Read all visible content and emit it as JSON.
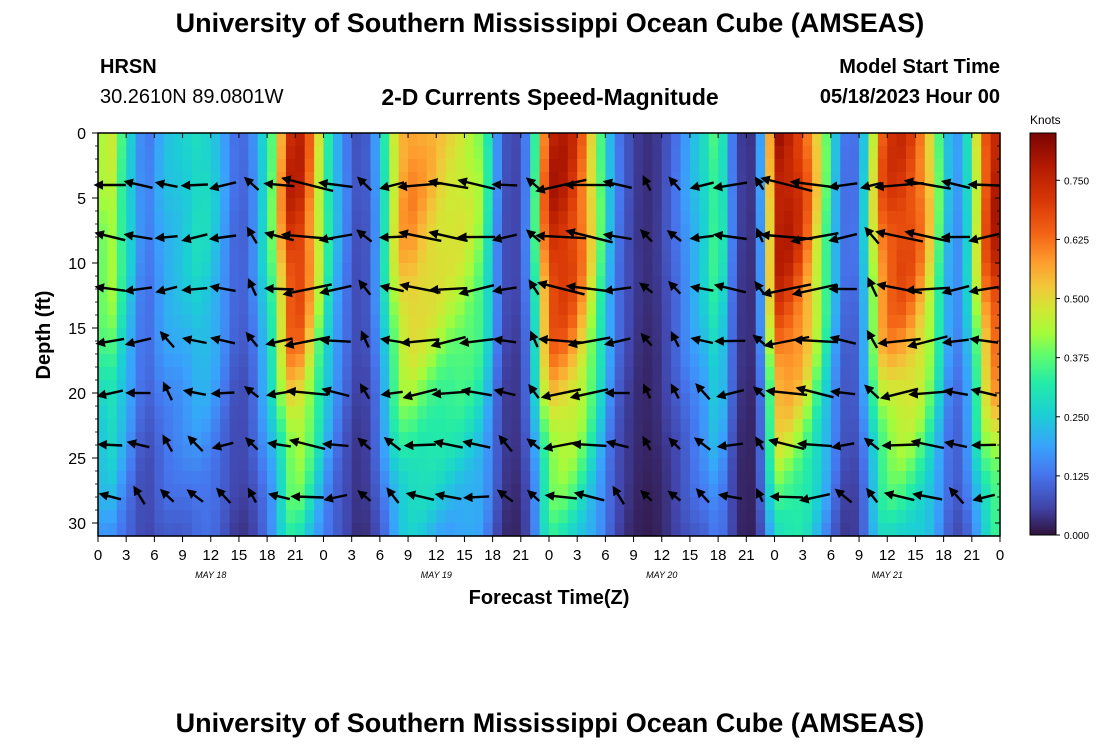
{
  "header": {
    "title": "University of Southern Mississippi Ocean Cube (AMSEAS)",
    "station": "HRSN",
    "coords": "30.2610N  89.0801W",
    "subtitle": "2-D Currents Speed-Magnitude",
    "model_start_label": "Model Start Time",
    "model_start_value": "05/18/2023 Hour 00",
    "footer_title": "University of Southern Mississippi Ocean Cube (AMSEAS)"
  },
  "colorbar": {
    "units": "Knots",
    "ticks": [
      "0.750",
      "0.625",
      "0.500",
      "0.375",
      "0.250",
      "0.125",
      "0.000"
    ],
    "min": 0,
    "max": 0.85
  },
  "chart_data": {
    "type": "heatmap",
    "title": "2-D Currents Speed-Magnitude",
    "xlabel": "Forecast Time(Z)",
    "ylabel": "Depth (ft)",
    "xlim": [
      0,
      96
    ],
    "ylim": [
      31,
      0
    ],
    "x_tick_values": [
      0,
      3,
      6,
      9,
      12,
      15,
      18,
      21,
      24,
      27,
      30,
      33,
      36,
      39,
      42,
      45,
      48,
      51,
      54,
      57,
      60,
      63,
      66,
      69,
      72,
      75,
      78,
      81,
      84,
      87,
      90,
      93,
      96
    ],
    "x_tick_labels": [
      "0",
      "3",
      "6",
      "9",
      "12",
      "15",
      "18",
      "21",
      "0",
      "3",
      "6",
      "9",
      "12",
      "15",
      "18",
      "21",
      "0",
      "3",
      "6",
      "9",
      "12",
      "15",
      "18",
      "21",
      "0",
      "3",
      "6",
      "9",
      "12",
      "15",
      "18",
      "21",
      "0"
    ],
    "day_labels": [
      {
        "x": 12,
        "label": "MAY 18"
      },
      {
        "x": 36,
        "label": "MAY 19"
      },
      {
        "x": 60,
        "label": "MAY 20"
      },
      {
        "x": 84,
        "label": "MAY 21"
      }
    ],
    "y_tick_values": [
      0,
      5,
      10,
      15,
      20,
      25,
      30
    ],
    "y_tick_labels": [
      "0",
      "5",
      "10",
      "15",
      "20",
      "25",
      "30"
    ],
    "speed_profile": {
      "description": "approximate surface speed (knots) vs forecast hour",
      "hours": [
        0,
        1,
        3,
        5,
        7,
        9,
        11,
        13,
        14,
        15,
        16,
        17,
        19,
        20,
        21,
        22,
        23,
        25,
        27,
        28,
        29,
        30,
        31,
        32,
        33,
        35,
        37,
        39,
        41,
        42,
        43,
        44,
        45,
        46,
        47,
        48,
        49,
        51,
        53,
        55,
        57,
        59,
        61,
        63,
        65,
        66,
        67,
        68,
        69,
        70,
        71,
        72,
        73,
        75,
        77,
        79,
        80,
        81,
        82,
        83,
        84,
        86,
        88,
        90,
        91,
        92,
        93,
        94,
        95,
        96
      ],
      "speed": [
        0.35,
        0.5,
        0.3,
        0.12,
        0.22,
        0.25,
        0.3,
        0.22,
        0.14,
        0.1,
        0.12,
        0.2,
        0.45,
        0.7,
        0.78,
        0.7,
        0.55,
        0.25,
        0.1,
        0.06,
        0.12,
        0.22,
        0.4,
        0.55,
        0.6,
        0.55,
        0.5,
        0.48,
        0.4,
        0.22,
        0.1,
        0.05,
        0.08,
        0.2,
        0.5,
        0.75,
        0.78,
        0.7,
        0.45,
        0.15,
        0.05,
        0.03,
        0.1,
        0.2,
        0.3,
        0.4,
        0.2,
        0.08,
        0.02,
        0.06,
        0.3,
        0.78,
        0.8,
        0.7,
        0.45,
        0.15,
        0.1,
        0.15,
        0.35,
        0.6,
        0.7,
        0.72,
        0.6,
        0.3,
        0.15,
        0.2,
        0.35,
        0.6,
        0.75,
        0.8
      ],
      "depth_factor_ft": [
        0,
        5,
        10,
        15,
        20,
        25,
        31
      ],
      "depth_factor": [
        1.0,
        1.0,
        0.95,
        0.85,
        0.7,
        0.55,
        0.4
      ]
    },
    "current_vector_depths_ft": [
      4,
      8,
      12,
      16,
      20,
      24,
      28
    ]
  },
  "axes": {
    "x_title": "Forecast Time(Z)",
    "y_title": "Depth (ft)"
  }
}
